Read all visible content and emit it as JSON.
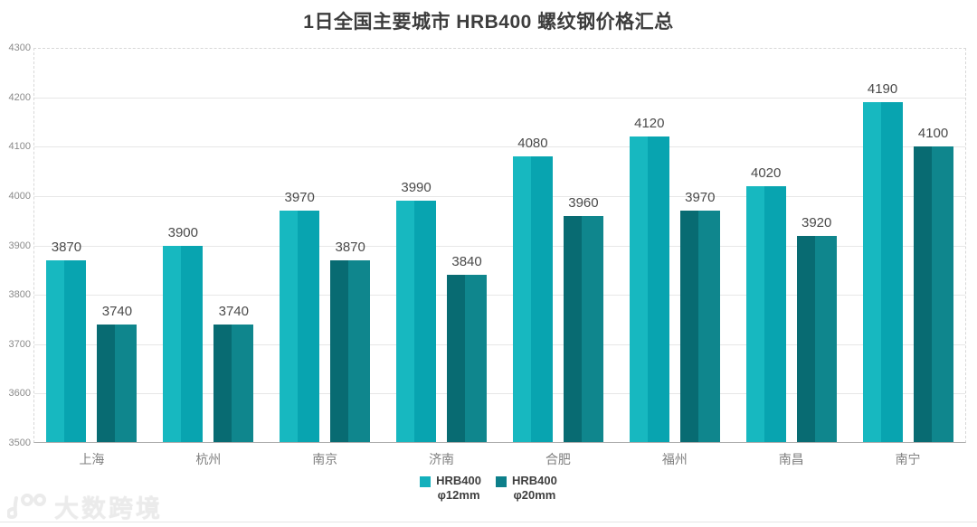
{
  "title": "1日全国主要城市 HRB400 螺纹钢价格汇总",
  "watermark": {
    "text": "大数跨境"
  },
  "colors": {
    "series1_left": "#17b8c0",
    "series1_right": "#08a4b0",
    "series2_left": "#086b72",
    "series2_right": "#0f868d",
    "legend1": "#14b0bc",
    "legend2": "#0d7f8a",
    "title_text": "#3d3d3d",
    "value_label": "#4a4a4a",
    "axis_text": "#8a8a8a",
    "category_text": "#7f7f7f",
    "gridline": "#e7e7e7",
    "plot_border": "#d8d8d8",
    "axis_line": "#acacac"
  },
  "chart_data": {
    "type": "bar",
    "title": "1日全国主要城市 HRB400 螺纹钢价格汇总",
    "categories": [
      "上海",
      "杭州",
      "南京",
      "济南",
      "合肥",
      "福州",
      "南昌",
      "南宁"
    ],
    "series": [
      {
        "name": "HRB400 φ12mm",
        "legend_lines": [
          "HRB400",
          "φ12mm"
        ],
        "values": [
          3870,
          3900,
          3970,
          3990,
          4080,
          4120,
          4020,
          4190
        ]
      },
      {
        "name": "HRB400 φ20mm",
        "legend_lines": [
          "HRB400",
          "φ20mm"
        ],
        "values": [
          3740,
          3740,
          3870,
          3840,
          3960,
          3970,
          3920,
          4100
        ]
      }
    ],
    "xlabel": "",
    "ylabel": "",
    "ylim": [
      3500,
      4300
    ],
    "ytick_step": 100,
    "grid": true,
    "legend_position": "bottom",
    "data_labels": true
  }
}
